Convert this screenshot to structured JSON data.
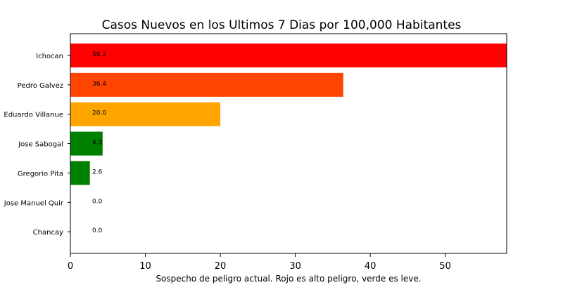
{
  "chart_data": {
    "type": "bar",
    "orientation": "horizontal",
    "title": "Casos Nuevos en los Ultimos 7 Dias por 100,000 Habitantes",
    "xlabel": "Sospecho de peligro actual. Rojo es alto peligro, verde es leve.",
    "ylabel": "",
    "categories": [
      "Ichocan",
      "Pedro Galvez",
      "Eduardo Villanue",
      "Jose Sabogal",
      "Gregorio Pita",
      "Jose Manuel Quir",
      "Chancay"
    ],
    "values": [
      58.2,
      36.4,
      20.0,
      4.3,
      2.6,
      0.0,
      0.0
    ],
    "value_labels": [
      "58.2",
      "36.4",
      "20.0",
      "4.3",
      "2.6",
      "0.0",
      "0.0"
    ],
    "colors": [
      "#ff0000",
      "#ff4500",
      "#ffa500",
      "#008000",
      "#008000",
      "#008000",
      "#008000"
    ],
    "xlim": [
      0,
      58.2
    ],
    "xticks": [
      0,
      10,
      20,
      30,
      40,
      50
    ],
    "grid": false,
    "legend": "none"
  }
}
